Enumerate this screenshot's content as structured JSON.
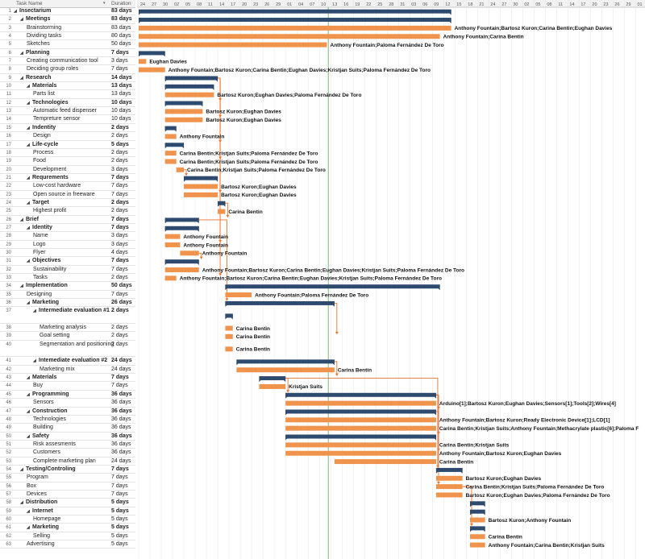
{
  "header": {
    "col_task": "Task Name",
    "col_duration": "Duration",
    "sort_icon": "chevron-down-icon"
  },
  "timeline": {
    "days": [
      "24",
      "27",
      "30",
      "02",
      "05",
      "08",
      "11",
      "14",
      "17",
      "20",
      "23",
      "26",
      "29",
      "01",
      "04",
      "07",
      "10",
      "13",
      "16",
      "19",
      "22",
      "25",
      "28",
      "31",
      "03",
      "06",
      "09",
      "12",
      "15",
      "18",
      "21",
      "24",
      "27",
      "30",
      "02",
      "05",
      "08",
      "11",
      "14",
      "17",
      "20",
      "23",
      "26",
      "29",
      "01"
    ],
    "today_day": 17
  },
  "tasks": [
    {
      "n": "1",
      "name": "Insectarium",
      "dur": "83 days",
      "lvl": 0,
      "summary": true,
      "start": 0,
      "len": 83,
      "res": ""
    },
    {
      "n": "2",
      "name": "Meetings",
      "dur": "83 days",
      "lvl": 1,
      "summary": true,
      "start": 0,
      "len": 83,
      "res": ""
    },
    {
      "n": "3",
      "name": "Brainstorming",
      "dur": "83 days",
      "lvl": 2,
      "start": 0,
      "len": 83,
      "res": "Anthony Fountain;Bartosz Kuron;Carina Bentin;Eughan Davies"
    },
    {
      "n": "4",
      "name": "Dividing tasks",
      "dur": "80 days",
      "lvl": 2,
      "start": 0,
      "len": 80,
      "res": "Anthony Fountain;Carina Bentin"
    },
    {
      "n": "5",
      "name": "Sketches",
      "dur": "50 days",
      "lvl": 2,
      "start": 0,
      "len": 50,
      "res": "Anthony Fountain;Paloma Fernández De Toro"
    },
    {
      "n": "6",
      "name": "Planning",
      "dur": "7 days",
      "lvl": 1,
      "summary": true,
      "start": 0,
      "len": 7,
      "res": ""
    },
    {
      "n": "7",
      "name": "Creating communication tool",
      "dur": "3 days",
      "lvl": 2,
      "start": 0,
      "len": 2,
      "res": "Eughan Davies"
    },
    {
      "n": "8",
      "name": "Deciding group roles",
      "dur": "7 days",
      "lvl": 2,
      "start": 0,
      "len": 7,
      "res": "Anthony Fountain;Bartosz Kuron;Carina Bentin;Eughan Davies;Kristjan Suits;Paloma Fernández De Toro"
    },
    {
      "n": "9",
      "name": "Research",
      "dur": "14 days",
      "lvl": 1,
      "summary": true,
      "start": 7,
      "len": 14,
      "res": ""
    },
    {
      "n": "10",
      "name": "Materials",
      "dur": "13 days",
      "lvl": 2,
      "summary": true,
      "start": 7,
      "len": 13,
      "res": ""
    },
    {
      "n": "11",
      "name": "Parts list",
      "dur": "13 days",
      "lvl": 3,
      "start": 7,
      "len": 13,
      "res": "Bartosz Kuron;Eughan Davies;Paloma Fernández De Toro"
    },
    {
      "n": "12",
      "name": "Technologies",
      "dur": "10 days",
      "lvl": 2,
      "summary": true,
      "start": 7,
      "len": 10,
      "res": ""
    },
    {
      "n": "13",
      "name": "Automatic feed dispenser",
      "dur": "10 days",
      "lvl": 3,
      "start": 7,
      "len": 10,
      "res": "Bartosz Kuron;Eughan Davies"
    },
    {
      "n": "14",
      "name": "Tempreture sensor",
      "dur": "10 days",
      "lvl": 3,
      "start": 7,
      "len": 10,
      "res": "Bartosz Kuron;Eughan Davies"
    },
    {
      "n": "15",
      "name": "Indentity",
      "dur": "2 days",
      "lvl": 2,
      "summary": true,
      "start": 7,
      "len": 3,
      "res": ""
    },
    {
      "n": "16",
      "name": "Design",
      "dur": "2 days",
      "lvl": 3,
      "start": 7,
      "len": 3,
      "res": "Anthony Fountain"
    },
    {
      "n": "17",
      "name": "Life-cycle",
      "dur": "5 days",
      "lvl": 2,
      "summary": true,
      "start": 7,
      "len": 5,
      "res": ""
    },
    {
      "n": "18",
      "name": "Process",
      "dur": "2 days",
      "lvl": 3,
      "start": 7,
      "len": 3,
      "res": "Carina Bentin;Kristjan Suits;Paloma Fernández De Toro"
    },
    {
      "n": "19",
      "name": "Food",
      "dur": "2 days",
      "lvl": 3,
      "start": 7,
      "len": 3,
      "res": "Carina Bentin;Kristjan Suits;Paloma Fernández De Toro"
    },
    {
      "n": "20",
      "name": "Development",
      "dur": "3 days",
      "lvl": 3,
      "start": 10,
      "len": 2,
      "res": "Carina Bentin;Kristjan Suits;Paloma Fernández De Toro"
    },
    {
      "n": "21",
      "name": "Requrements",
      "dur": "7 days",
      "lvl": 2,
      "summary": true,
      "start": 12,
      "len": 9,
      "res": ""
    },
    {
      "n": "22",
      "name": "Low-cost hardware",
      "dur": "7 days",
      "lvl": 3,
      "start": 12,
      "len": 9,
      "res": "Bartosz Kuron;Eughan Davies"
    },
    {
      "n": "23",
      "name": "Open source in freeware",
      "dur": "7 days",
      "lvl": 3,
      "start": 12,
      "len": 9,
      "res": "Bartosz Kuron;Eughan Davies"
    },
    {
      "n": "24",
      "name": "Target",
      "dur": "2 days",
      "lvl": 2,
      "summary": true,
      "start": 21,
      "len": 2,
      "res": ""
    },
    {
      "n": "25",
      "name": "Highest profit",
      "dur": "2 days",
      "lvl": 3,
      "start": 21,
      "len": 2,
      "res": "Carina Bentin"
    },
    {
      "n": "26",
      "name": "Brief",
      "dur": "7 days",
      "lvl": 1,
      "summary": true,
      "start": 7,
      "len": 9,
      "res": ""
    },
    {
      "n": "27",
      "name": "Identity",
      "dur": "7 days",
      "lvl": 2,
      "summary": true,
      "start": 7,
      "len": 9,
      "res": ""
    },
    {
      "n": "28",
      "name": "Name",
      "dur": "3 days",
      "lvl": 3,
      "start": 7,
      "len": 4,
      "res": "Anthony Fountain"
    },
    {
      "n": "29",
      "name": "Logo",
      "dur": "3 days",
      "lvl": 3,
      "start": 7,
      "len": 4,
      "res": "Anthony Fountain"
    },
    {
      "n": "30",
      "name": "Flyer",
      "dur": "4 days",
      "lvl": 3,
      "start": 11,
      "len": 5,
      "res": "Anthony Fountain"
    },
    {
      "n": "31",
      "name": "Objectives",
      "dur": "7 days",
      "lvl": 2,
      "summary": true,
      "start": 7,
      "len": 9,
      "res": ""
    },
    {
      "n": "32",
      "name": "Sustainability",
      "dur": "7 days",
      "lvl": 3,
      "start": 7,
      "len": 9,
      "res": "Anthony Fountain;Bartosz Kuron;Carina Bentin;Eughan Davies;Kristjan Suits;Paloma Fernández De Toro"
    },
    {
      "n": "33",
      "name": "Tasks",
      "dur": "2 days",
      "lvl": 3,
      "start": 7,
      "len": 3,
      "res": "Anthony Fountain;Bartosz Kuron;Carina Bentin;Eughan Davies;Kristjan Suits;Paloma Fernández De Toro"
    },
    {
      "n": "34",
      "name": "Implementation",
      "dur": "50 days",
      "lvl": 1,
      "summary": true,
      "start": 23,
      "len": 57,
      "res": ""
    },
    {
      "n": "35",
      "name": "Designing",
      "dur": "7 days",
      "lvl": 2,
      "start": 23,
      "len": 7,
      "res": "Anthony Fountain;Paloma Fernández De Toro"
    },
    {
      "n": "36",
      "name": "Marketing",
      "dur": "26 days",
      "lvl": 2,
      "summary": true,
      "start": 23,
      "len": 29,
      "res": ""
    },
    {
      "n": "37",
      "name": "Intermediate evaluation #1",
      "dur": "2 days",
      "lvl": 3,
      "summary": true,
      "tall": true,
      "start": 23,
      "len": 2,
      "res": ""
    },
    {
      "n": "38",
      "name": "Marketing analysis",
      "dur": "2 days",
      "lvl": 4,
      "start": 23,
      "len": 2,
      "res": "Carina Bentin"
    },
    {
      "n": "39",
      "name": "Goal setting",
      "dur": "2 days",
      "lvl": 4,
      "start": 23,
      "len": 2,
      "res": "Carina Bentin"
    },
    {
      "n": "40",
      "name": "Segmentation and positioning",
      "dur": "2 days",
      "lvl": 4,
      "tall": true,
      "start": 23,
      "len": 2,
      "res": "Carina Bentin"
    },
    {
      "n": "41",
      "name": "Intemediate evaluation #2",
      "dur": "24 days",
      "lvl": 3,
      "summary": true,
      "start": 26,
      "len": 26,
      "res": ""
    },
    {
      "n": "42",
      "name": "Marketing mix",
      "dur": "24 days",
      "lvl": 4,
      "start": 26,
      "len": 26,
      "res": "Carina Bentin"
    },
    {
      "n": "43",
      "name": "Materials",
      "dur": "7 days",
      "lvl": 2,
      "summary": true,
      "start": 32,
      "len": 7,
      "res": ""
    },
    {
      "n": "44",
      "name": "Buy",
      "dur": "7 days",
      "lvl": 3,
      "start": 32,
      "len": 7,
      "res": "Kristjan Suits"
    },
    {
      "n": "45",
      "name": "Programming",
      "dur": "36 days",
      "lvl": 2,
      "summary": true,
      "start": 39,
      "len": 40,
      "res": ""
    },
    {
      "n": "46",
      "name": "Sensors",
      "dur": "36 days",
      "lvl": 3,
      "start": 39,
      "len": 40,
      "res": "Arduino[1];Bartosz Kuron;Eughan Davies;Sensors[1];Tools[2];Wires[4]"
    },
    {
      "n": "47",
      "name": "Construction",
      "dur": "36 days",
      "lvl": 2,
      "summary": true,
      "start": 39,
      "len": 40,
      "res": ""
    },
    {
      "n": "48",
      "name": "Technologies",
      "dur": "36 days",
      "lvl": 3,
      "start": 39,
      "len": 40,
      "res": "Anthony Fountain;Bartosz Kuron;Ready Electronic Device[1];LCD[1]"
    },
    {
      "n": "49",
      "name": "Building",
      "dur": "36 days",
      "lvl": 3,
      "start": 39,
      "len": 40,
      "res": "Carina Bentin;Kristjan Suits;Anthony Fountain;Methacrylate plastic[6];Paloma F"
    },
    {
      "n": "50",
      "name": "Safety",
      "dur": "36 days",
      "lvl": 2,
      "summary": true,
      "start": 39,
      "len": 40,
      "res": ""
    },
    {
      "n": "51",
      "name": "Risk assesments",
      "dur": "36 days",
      "lvl": 3,
      "start": 39,
      "len": 40,
      "res": "Carina Bentin;Kristjan Suits"
    },
    {
      "n": "52",
      "name": "Customers",
      "dur": "36 days",
      "lvl": 3,
      "start": 39,
      "len": 40,
      "res": "Anthony Fountain;Bartosz Kuron;Eughan Davies"
    },
    {
      "n": "53",
      "name": "Complete marketing plan",
      "dur": "24 days",
      "lvl": 3,
      "start": 52,
      "len": 27,
      "res": "Carina Bentin"
    },
    {
      "n": "54",
      "name": "Testing/Controling",
      "dur": "7 days",
      "lvl": 1,
      "summary": true,
      "start": 79,
      "len": 7,
      "res": ""
    },
    {
      "n": "55",
      "name": "Program",
      "dur": "7 days",
      "lvl": 2,
      "start": 79,
      "len": 7,
      "res": "Bartosz Kuron;Eughan Davies"
    },
    {
      "n": "56",
      "name": "Box",
      "dur": "7 days",
      "lvl": 2,
      "start": 79,
      "len": 7,
      "res": "Carina Bentin;Kristjan Suits;Paloma Fernández De Toro"
    },
    {
      "n": "57",
      "name": "Devices",
      "dur": "7 days",
      "lvl": 2,
      "start": 79,
      "len": 7,
      "res": "Bartosz Kuron;Eughan Davies;Paloma Fernández De Toro"
    },
    {
      "n": "58",
      "name": "Distribution",
      "dur": "5 days",
      "lvl": 1,
      "summary": true,
      "start": 88,
      "len": 4,
      "res": ""
    },
    {
      "n": "59",
      "name": "Internet",
      "dur": "5 days",
      "lvl": 2,
      "summary": true,
      "start": 88,
      "len": 4,
      "res": ""
    },
    {
      "n": "60",
      "name": "Homepage",
      "dur": "5 days",
      "lvl": 3,
      "start": 88,
      "len": 4,
      "res": "Bartosz Kuron;Anthony Fountain"
    },
    {
      "n": "61",
      "name": "Marketing",
      "dur": "5 days",
      "lvl": 2,
      "summary": true,
      "start": 88,
      "len": 4,
      "res": ""
    },
    {
      "n": "62",
      "name": "Selling",
      "dur": "5 days",
      "lvl": 3,
      "start": 88,
      "len": 4,
      "res": "Carina Bentin"
    },
    {
      "n": "63",
      "name": "Advertising",
      "dur": "5 days",
      "lvl": 2,
      "start": 88,
      "len": 4,
      "res": "Anthony Fountain;Carina Bentin;Kristjan Suits"
    }
  ],
  "links": [
    [
      8,
      11
    ],
    [
      8,
      13
    ],
    [
      8,
      16
    ],
    [
      8,
      18
    ],
    [
      19,
      20
    ],
    [
      8,
      22
    ],
    [
      23,
      25
    ],
    [
      8,
      28
    ],
    [
      29,
      30
    ],
    [
      8,
      32
    ],
    [
      25,
      35
    ],
    [
      35,
      38
    ],
    [
      40,
      42
    ],
    [
      42,
      44
    ],
    [
      44,
      46
    ],
    [
      44,
      49
    ],
    [
      44,
      51
    ],
    [
      42,
      53
    ],
    [
      46,
      55
    ],
    [
      55,
      60
    ]
  ],
  "colors": {
    "bar": "#f0944d",
    "summary": "#2e4a6e",
    "link": "#e8742c",
    "today": "#5aaa5a",
    "grid": "#e6e6e6"
  }
}
